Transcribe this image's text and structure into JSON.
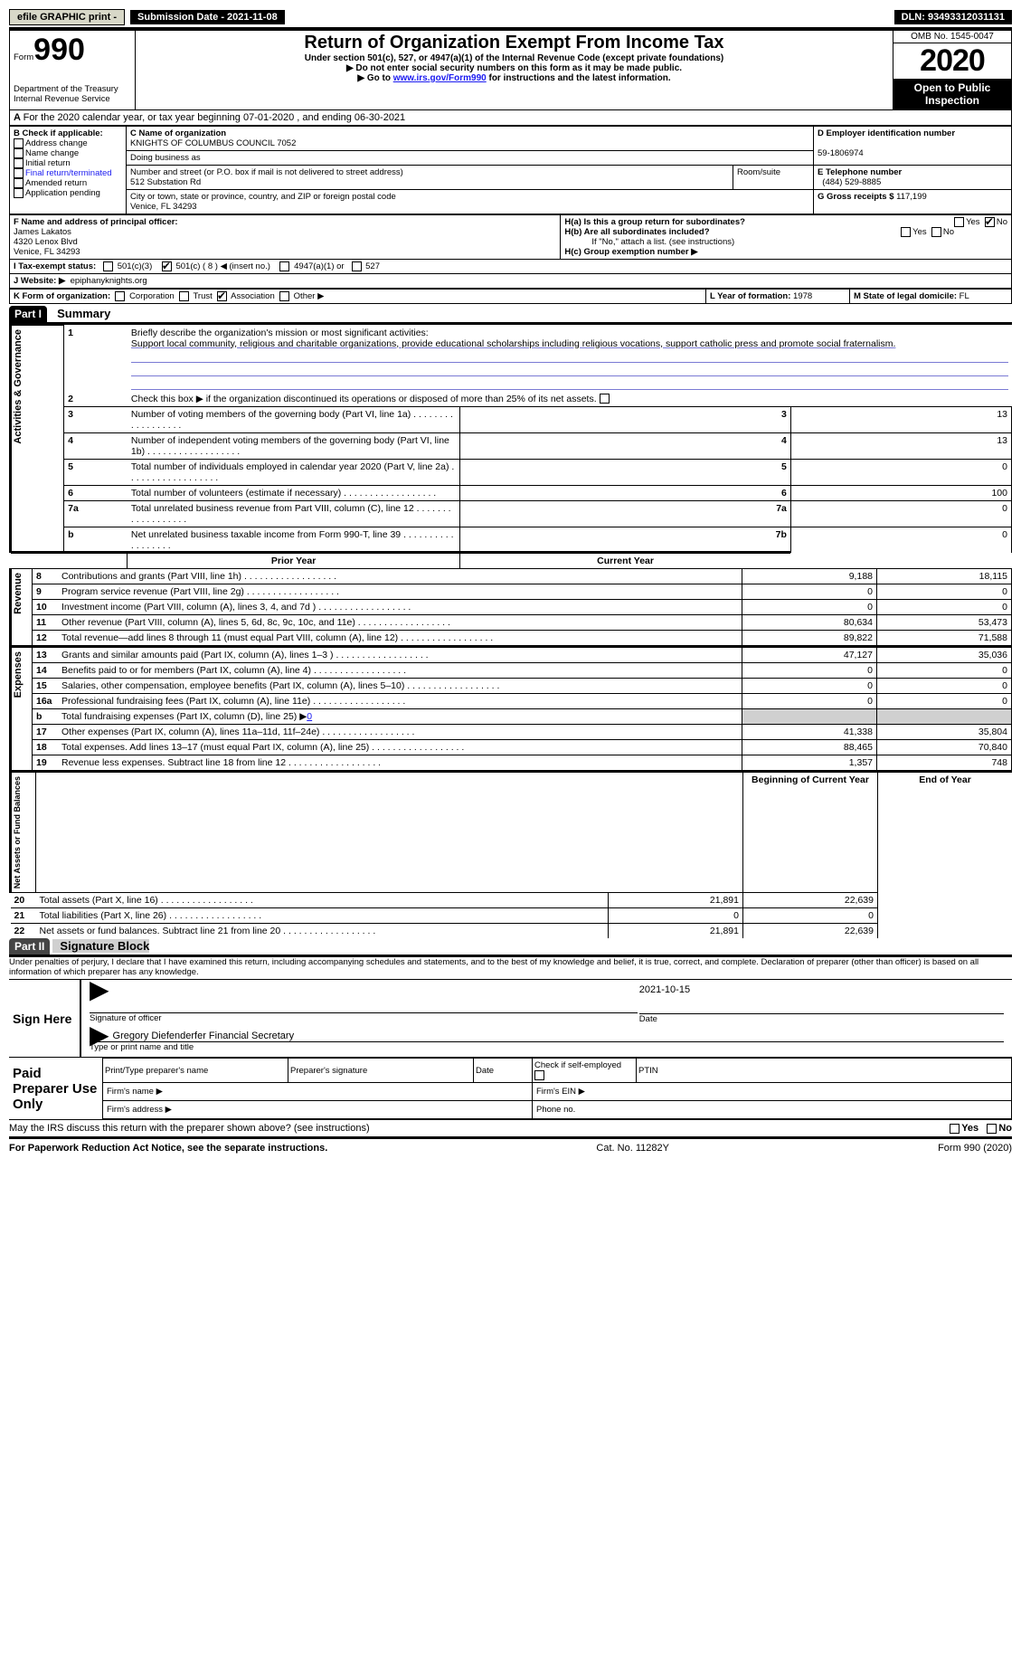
{
  "topbar": {
    "efile": "efile GRAPHIC print -",
    "submission": "Submission Date - 2021-11-08",
    "dln": "DLN: 93493312031131"
  },
  "header": {
    "form_prefix": "Form",
    "form_no": "990",
    "dept": "Department of the Treasury\nInternal Revenue Service",
    "title": "Return of Organization Exempt From Income Tax",
    "subtitle": "Under section 501(c), 527, or 4947(a)(1) of the Internal Revenue Code (except private foundations)",
    "note1": "▶ Do not enter social security numbers on this form as it may be made public.",
    "note2_a": "▶ Go to ",
    "note2_link": "www.irs.gov/Form990",
    "note2_b": " for instructions and the latest information.",
    "omb": "OMB No. 1545-0047",
    "year": "2020",
    "open": "Open to Public Inspection"
  },
  "line_a": "For the 2020 calendar year, or tax year beginning 07-01-2020   , and ending 06-30-2021",
  "box_b": {
    "title": "B Check if applicable:",
    "items": [
      "Address change",
      "Name change",
      "Initial return",
      "Final return/terminated",
      "Amended return",
      "Application pending"
    ]
  },
  "box_c": {
    "label_name": "C Name of organization",
    "name": "KNIGHTS OF COLUMBUS COUNCIL 7052",
    "dba_label": "Doing business as",
    "addr_label": "Number and street (or P.O. box if mail is not delivered to street address)",
    "room_label": "Room/suite",
    "addr": "512 Substation Rd",
    "city_label": "City or town, state or province, country, and ZIP or foreign postal code",
    "city": "Venice, FL  34293"
  },
  "box_d": {
    "label": "D Employer identification number",
    "val": "59-1806974"
  },
  "box_e": {
    "label": "E Telephone number",
    "val": "(484) 529-8885"
  },
  "box_g": {
    "label": "G Gross receipts $",
    "val": "117,199"
  },
  "box_f": {
    "label": "F  Name and address of principal officer:",
    "name": "James Lakatos",
    "addr1": "4320 Lenox Blvd",
    "addr2": "Venice, FL  34293"
  },
  "box_h": {
    "ha": "H(a)  Is this a group return for subordinates?",
    "hb": "H(b)  Are all subordinates included?",
    "hb_note": "If \"No,\" attach a list. (see instructions)",
    "hc": "H(c)  Group exemption number ▶",
    "yes": "Yes",
    "no": "No"
  },
  "box_i": {
    "label": "I  Tax-exempt status:",
    "c3": "501(c)(3)",
    "c": "501(c) ( 8 ) ◀ (insert no.)",
    "a": "4947(a)(1) or",
    "527": "527"
  },
  "box_j": {
    "label": "J  Website: ▶",
    "val": "epiphanyknights.org"
  },
  "box_k": {
    "label": "K Form of organization:",
    "corp": "Corporation",
    "trust": "Trust",
    "assoc": "Association",
    "other": "Other ▶"
  },
  "box_l": {
    "label": "L Year of formation:",
    "val": "1978"
  },
  "box_m": {
    "label": "M State of legal domicile:",
    "val": "FL"
  },
  "part1": {
    "label": "Part I",
    "title": "Summary"
  },
  "summary": {
    "side_gov": "Activities & Governance",
    "side_rev": "Revenue",
    "side_exp": "Expenses",
    "side_net": "Net Assets or Fund Balances",
    "l1": "Briefly describe the organization's mission or most significant activities:",
    "mission": "Support local community, religious and charitable organizations, provide educational scholarships including religious vocations, support catholic press and promote social fraternalism.",
    "l2": "Check this box ▶      if the organization discontinued its operations or disposed of more than 25% of its net assets.",
    "rows": [
      {
        "n": "3",
        "t": "Number of voting members of the governing body (Part VI, line 1a)",
        "b": "3",
        "v": "13"
      },
      {
        "n": "4",
        "t": "Number of independent voting members of the governing body (Part VI, line 1b)",
        "b": "4",
        "v": "13"
      },
      {
        "n": "5",
        "t": "Total number of individuals employed in calendar year 2020 (Part V, line 2a)",
        "b": "5",
        "v": "0"
      },
      {
        "n": "6",
        "t": "Total number of volunteers (estimate if necessary)",
        "b": "6",
        "v": "100"
      },
      {
        "n": "7a",
        "t": "Total unrelated business revenue from Part VIII, column (C), line 12",
        "b": "7a",
        "v": "0"
      },
      {
        "n": "b",
        "t": "Net unrelated business taxable income from Form 990-T, line 39",
        "b": "7b",
        "v": "0"
      }
    ],
    "prior": "Prior Year",
    "current": "Current Year",
    "rev": [
      {
        "n": "8",
        "t": "Contributions and grants (Part VIII, line 1h)",
        "p": "9,188",
        "c": "18,115"
      },
      {
        "n": "9",
        "t": "Program service revenue (Part VIII, line 2g)",
        "p": "0",
        "c": "0"
      },
      {
        "n": "10",
        "t": "Investment income (Part VIII, column (A), lines 3, 4, and 7d )",
        "p": "0",
        "c": "0"
      },
      {
        "n": "11",
        "t": "Other revenue (Part VIII, column (A), lines 5, 6d, 8c, 9c, 10c, and 11e)",
        "p": "80,634",
        "c": "53,473"
      },
      {
        "n": "12",
        "t": "Total revenue—add lines 8 through 11 (must equal Part VIII, column (A), line 12)",
        "p": "89,822",
        "c": "71,588"
      }
    ],
    "exp": [
      {
        "n": "13",
        "t": "Grants and similar amounts paid (Part IX, column (A), lines 1–3 )",
        "p": "47,127",
        "c": "35,036"
      },
      {
        "n": "14",
        "t": "Benefits paid to or for members (Part IX, column (A), line 4)",
        "p": "0",
        "c": "0"
      },
      {
        "n": "15",
        "t": "Salaries, other compensation, employee benefits (Part IX, column (A), lines 5–10)",
        "p": "0",
        "c": "0"
      },
      {
        "n": "16a",
        "t": "Professional fundraising fees (Part IX, column (A), line 11e)",
        "p": "0",
        "c": "0"
      }
    ],
    "l16b_a": "Total fundraising expenses (Part IX, column (D), line 25) ▶",
    "l16b_v": "0",
    "exp2": [
      {
        "n": "17",
        "t": "Other expenses (Part IX, column (A), lines 11a–11d, 11f–24e)",
        "p": "41,338",
        "c": "35,804"
      },
      {
        "n": "18",
        "t": "Total expenses. Add lines 13–17 (must equal Part IX, column (A), line 25)",
        "p": "88,465",
        "c": "70,840"
      },
      {
        "n": "19",
        "t": "Revenue less expenses. Subtract line 18 from line 12",
        "p": "1,357",
        "c": "748"
      }
    ],
    "begin": "Beginning of Current Year",
    "end": "End of Year",
    "net": [
      {
        "n": "20",
        "t": "Total assets (Part X, line 16)",
        "p": "21,891",
        "c": "22,639"
      },
      {
        "n": "21",
        "t": "Total liabilities (Part X, line 26)",
        "p": "0",
        "c": "0"
      },
      {
        "n": "22",
        "t": "Net assets or fund balances. Subtract line 21 from line 20",
        "p": "21,891",
        "c": "22,639"
      }
    ]
  },
  "part2": {
    "label": "Part II",
    "title": "Signature Block"
  },
  "penalties": "Under penalties of perjury, I declare that I have examined this return, including accompanying schedules and statements, and to the best of my knowledge and belief, it is true, correct, and complete. Declaration of preparer (other than officer) is based on all information of which preparer has any knowledge.",
  "sign": {
    "here": "Sign Here",
    "sig_officer": "Signature of officer",
    "date": "Date",
    "date_val": "2021-10-15",
    "name": "Gregory Diefenderfer  Financial Secretary",
    "name_label": "Type or print name and title"
  },
  "paid": {
    "title": "Paid Preparer Use Only",
    "c1": "Print/Type preparer's name",
    "c2": "Preparer's signature",
    "c3": "Date",
    "c4": "Check      if self-employed",
    "c5": "PTIN",
    "fname": "Firm's name  ▶",
    "fein": "Firm's EIN ▶",
    "faddr": "Firm's address ▶",
    "phone": "Phone no."
  },
  "discuss": "May the IRS discuss this return with the preparer shown above? (see instructions)",
  "footer": {
    "pra": "For Paperwork Reduction Act Notice, see the separate instructions.",
    "cat": "Cat. No. 11282Y",
    "form": "Form 990 (2020)"
  }
}
